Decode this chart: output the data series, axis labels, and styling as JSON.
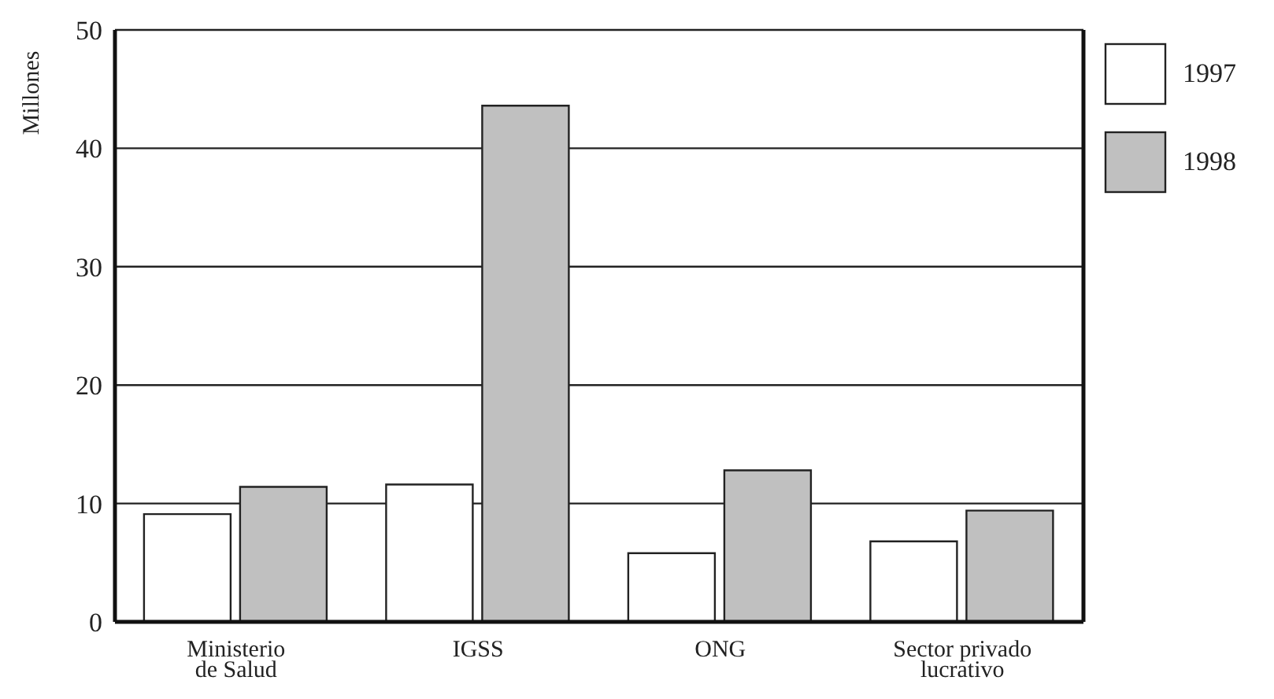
{
  "chart_data": {
    "type": "bar",
    "ylabel": "Millones",
    "categories": [
      "Ministerio de Salud",
      "IGSS",
      "ONG",
      "Sector privado lucrativo"
    ],
    "series": [
      {
        "name": "1997",
        "color": "#ffffff",
        "values": [
          9.1,
          11.6,
          5.8,
          6.8
        ]
      },
      {
        "name": "1998",
        "color": "#c0c0c0",
        "values": [
          11.4,
          43.6,
          12.8,
          9.4
        ]
      }
    ],
    "ylim": [
      0,
      50
    ],
    "yticks": [
      0,
      10,
      20,
      30,
      40,
      50
    ],
    "grid": "y",
    "legend": "top right"
  }
}
